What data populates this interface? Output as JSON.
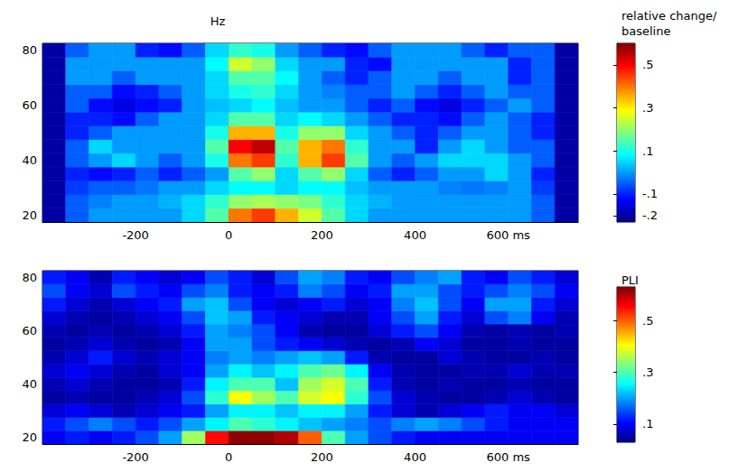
{
  "chart_data": [
    {
      "type": "heatmap",
      "y_label": "Hz",
      "grid": false,
      "x": [
        -375,
        -325,
        -275,
        -225,
        -175,
        -125,
        -75,
        -25,
        25,
        75,
        125,
        175,
        225,
        275,
        325,
        375,
        425,
        475,
        525,
        575,
        625,
        675,
        725
      ],
      "y": [
        20,
        25,
        30,
        35,
        40,
        45,
        50,
        55,
        60,
        65,
        70,
        75,
        80
      ],
      "xlim": [
        -400,
        750
      ],
      "xticks": [
        -200,
        0,
        200,
        400,
        {
          "value": 600,
          "label": "600 ms"
        }
      ],
      "ylim": [
        17.5,
        82.5
      ],
      "yticks": [
        20,
        40,
        60,
        80
      ],
      "values": [
        [
          -0.2,
          -0.05,
          0.0,
          0.0,
          0.0,
          0.0,
          0.05,
          0.15,
          0.4,
          0.45,
          0.35,
          0.25,
          0.15,
          0.05,
          0.0,
          0.0,
          0.0,
          0.0,
          0.0,
          0.0,
          0.0,
          -0.05,
          -0.2
        ],
        [
          -0.2,
          -0.05,
          -0.02,
          0.0,
          0.0,
          0.02,
          0.05,
          0.12,
          0.2,
          0.22,
          0.2,
          0.18,
          0.12,
          0.05,
          0.02,
          0.0,
          0.0,
          0.0,
          0.0,
          0.0,
          0.0,
          -0.05,
          -0.2
        ],
        [
          -0.2,
          -0.08,
          -0.05,
          -0.05,
          -0.03,
          0.0,
          0.0,
          0.05,
          0.08,
          0.08,
          0.05,
          0.08,
          0.08,
          0.03,
          0.0,
          0.0,
          0.0,
          -0.02,
          -0.03,
          -0.02,
          0.0,
          -0.08,
          -0.2
        ],
        [
          -0.2,
          -0.1,
          -0.12,
          -0.1,
          -0.05,
          -0.1,
          -0.05,
          0.0,
          0.15,
          0.2,
          0.05,
          0.15,
          0.2,
          0.05,
          -0.05,
          -0.1,
          -0.05,
          0.0,
          0.0,
          0.05,
          0.0,
          -0.1,
          -0.2
        ],
        [
          -0.2,
          -0.05,
          0.0,
          0.05,
          0.0,
          -0.05,
          0.0,
          0.1,
          0.4,
          0.45,
          0.12,
          0.35,
          0.45,
          0.15,
          0.0,
          -0.05,
          0.0,
          0.05,
          0.05,
          0.05,
          0.0,
          -0.05,
          -0.2
        ],
        [
          -0.2,
          -0.05,
          0.05,
          0.0,
          0.0,
          0.0,
          0.0,
          0.15,
          0.5,
          0.55,
          0.15,
          0.35,
          0.4,
          0.12,
          0.0,
          0.0,
          -0.1,
          0.0,
          0.05,
          0.0,
          -0.05,
          -0.05,
          -0.2
        ],
        [
          -0.2,
          -0.1,
          -0.05,
          0.0,
          0.0,
          0.0,
          0.0,
          0.1,
          0.35,
          0.35,
          0.1,
          0.2,
          0.2,
          0.05,
          0.0,
          -0.05,
          -0.1,
          -0.05,
          0.0,
          0.0,
          -0.05,
          -0.1,
          -0.2
        ],
        [
          -0.2,
          -0.1,
          -0.1,
          -0.12,
          -0.05,
          0.0,
          0.0,
          0.05,
          0.15,
          0.15,
          0.05,
          0.08,
          0.05,
          0.0,
          -0.05,
          -0.1,
          -0.1,
          -0.12,
          -0.05,
          0.0,
          -0.05,
          -0.1,
          -0.2
        ],
        [
          -0.2,
          -0.05,
          -0.12,
          -0.15,
          -0.12,
          -0.1,
          0.0,
          0.03,
          0.05,
          0.08,
          0.03,
          0.0,
          0.0,
          -0.05,
          -0.1,
          -0.05,
          -0.12,
          -0.15,
          -0.1,
          -0.05,
          0.0,
          -0.05,
          -0.2
        ],
        [
          -0.2,
          -0.05,
          -0.05,
          -0.12,
          -0.1,
          -0.05,
          0.0,
          0.05,
          0.1,
          0.12,
          0.05,
          0.0,
          -0.02,
          -0.05,
          -0.05,
          0.0,
          -0.05,
          -0.1,
          -0.05,
          0.0,
          -0.05,
          -0.05,
          -0.2
        ],
        [
          -0.2,
          0.0,
          0.0,
          -0.05,
          0.0,
          0.0,
          0.0,
          0.05,
          0.15,
          0.15,
          0.08,
          0.0,
          -0.05,
          -0.1,
          -0.05,
          0.0,
          0.0,
          -0.05,
          0.0,
          0.0,
          -0.1,
          -0.05,
          -0.2
        ],
        [
          -0.2,
          0.0,
          0.0,
          0.0,
          0.0,
          0.0,
          0.0,
          0.08,
          0.25,
          0.2,
          0.05,
          0.0,
          0.0,
          -0.1,
          -0.12,
          0.0,
          0.0,
          0.0,
          0.0,
          0.0,
          -0.1,
          -0.05,
          -0.2
        ],
        [
          -0.2,
          -0.05,
          0.0,
          0.0,
          -0.1,
          -0.12,
          -0.05,
          0.05,
          0.12,
          0.1,
          0.0,
          -0.05,
          -0.1,
          -0.12,
          -0.05,
          0.0,
          0.0,
          0.0,
          -0.05,
          -0.1,
          -0.05,
          -0.05,
          -0.2
        ]
      ],
      "colorbar": {
        "label": "relative change/ baseline",
        "range": [
          -0.23,
          0.6
        ],
        "ticks": [
          {
            "value": -0.2,
            "label": "-.2"
          },
          {
            "value": -0.1,
            "label": "-.1"
          },
          {
            "value": 0.1,
            "label": ".1"
          },
          {
            "value": 0.3,
            "label": ".3"
          },
          {
            "value": 0.5,
            "label": ".5"
          }
        ]
      }
    },
    {
      "type": "heatmap",
      "grid": false,
      "x": [
        -375,
        -325,
        -275,
        -225,
        -175,
        -125,
        -75,
        -25,
        25,
        75,
        125,
        175,
        225,
        275,
        325,
        375,
        425,
        475,
        525,
        575,
        625,
        675,
        725
      ],
      "y": [
        20,
        25,
        30,
        35,
        40,
        45,
        50,
        55,
        60,
        65,
        70,
        75,
        80
      ],
      "xlim": [
        -400,
        750
      ],
      "xticks": [
        -200,
        0,
        200,
        400,
        {
          "value": 600,
          "label": "600 ms"
        }
      ],
      "ylim": [
        17.5,
        82.5
      ],
      "yticks": [
        20,
        40,
        60,
        80
      ],
      "values": [
        [
          0.1,
          0.12,
          0.1,
          0.12,
          0.15,
          0.2,
          0.35,
          0.55,
          0.62,
          0.62,
          0.6,
          0.5,
          0.3,
          0.2,
          0.15,
          0.12,
          0.1,
          0.1,
          0.1,
          0.1,
          0.1,
          0.1,
          0.1
        ],
        [
          0.12,
          0.15,
          0.18,
          0.15,
          0.12,
          0.15,
          0.2,
          0.25,
          0.3,
          0.28,
          0.25,
          0.22,
          0.2,
          0.18,
          0.15,
          0.18,
          0.2,
          0.18,
          0.15,
          0.12,
          0.1,
          0.1,
          0.1
        ],
        [
          0.08,
          0.1,
          0.08,
          0.06,
          0.08,
          0.1,
          0.12,
          0.2,
          0.25,
          0.25,
          0.22,
          0.25,
          0.25,
          0.2,
          0.12,
          0.08,
          0.06,
          0.08,
          0.1,
          0.12,
          0.1,
          0.1,
          0.08
        ],
        [
          0.05,
          0.06,
          0.05,
          0.05,
          0.06,
          0.08,
          0.15,
          0.28,
          0.4,
          0.35,
          0.3,
          0.38,
          0.4,
          0.28,
          0.15,
          0.08,
          0.06,
          0.05,
          0.05,
          0.06,
          0.08,
          0.06,
          0.05
        ],
        [
          0.06,
          0.08,
          0.06,
          0.05,
          0.05,
          0.06,
          0.12,
          0.25,
          0.3,
          0.3,
          0.22,
          0.35,
          0.38,
          0.3,
          0.12,
          0.06,
          0.05,
          0.06,
          0.05,
          0.05,
          0.06,
          0.05,
          0.05
        ],
        [
          0.08,
          0.1,
          0.08,
          0.06,
          0.05,
          0.08,
          0.1,
          0.2,
          0.25,
          0.22,
          0.25,
          0.3,
          0.32,
          0.25,
          0.1,
          0.06,
          0.05,
          0.05,
          0.06,
          0.06,
          0.08,
          0.06,
          0.06
        ],
        [
          0.06,
          0.08,
          0.12,
          0.08,
          0.06,
          0.08,
          0.1,
          0.18,
          0.2,
          0.18,
          0.2,
          0.22,
          0.2,
          0.12,
          0.06,
          0.05,
          0.05,
          0.08,
          0.06,
          0.05,
          0.05,
          0.06,
          0.05
        ],
        [
          0.05,
          0.06,
          0.08,
          0.06,
          0.05,
          0.06,
          0.1,
          0.2,
          0.2,
          0.15,
          0.12,
          0.1,
          0.08,
          0.06,
          0.05,
          0.06,
          0.1,
          0.08,
          0.05,
          0.05,
          0.06,
          0.05,
          0.05
        ],
        [
          0.06,
          0.05,
          0.06,
          0.05,
          0.06,
          0.08,
          0.12,
          0.2,
          0.18,
          0.15,
          0.1,
          0.06,
          0.05,
          0.05,
          0.08,
          0.12,
          0.15,
          0.1,
          0.06,
          0.05,
          0.06,
          0.05,
          0.06
        ],
        [
          0.08,
          0.06,
          0.05,
          0.06,
          0.08,
          0.1,
          0.15,
          0.22,
          0.2,
          0.12,
          0.1,
          0.08,
          0.06,
          0.06,
          0.1,
          0.15,
          0.2,
          0.12,
          0.08,
          0.15,
          0.18,
          0.1,
          0.06
        ],
        [
          0.12,
          0.08,
          0.06,
          0.08,
          0.1,
          0.12,
          0.2,
          0.22,
          0.15,
          0.1,
          0.08,
          0.1,
          0.12,
          0.08,
          0.1,
          0.18,
          0.22,
          0.15,
          0.1,
          0.2,
          0.2,
          0.12,
          0.08
        ],
        [
          0.15,
          0.1,
          0.08,
          0.15,
          0.12,
          0.1,
          0.15,
          0.18,
          0.12,
          0.1,
          0.12,
          0.18,
          0.15,
          0.1,
          0.12,
          0.2,
          0.2,
          0.15,
          0.12,
          0.15,
          0.18,
          0.15,
          0.1
        ],
        [
          0.12,
          0.1,
          0.06,
          0.12,
          0.1,
          0.08,
          0.1,
          0.15,
          0.12,
          0.08,
          0.15,
          0.2,
          0.18,
          0.12,
          0.1,
          0.15,
          0.18,
          0.2,
          0.12,
          0.1,
          0.15,
          0.12,
          0.08
        ]
      ],
      "colorbar": {
        "label": "PLI",
        "range": [
          0.03,
          0.63
        ],
        "ticks": [
          {
            "value": 0.1,
            "label": ".1"
          },
          {
            "value": 0.3,
            "label": ".3"
          },
          {
            "value": 0.5,
            "label": ".5"
          }
        ]
      }
    }
  ]
}
